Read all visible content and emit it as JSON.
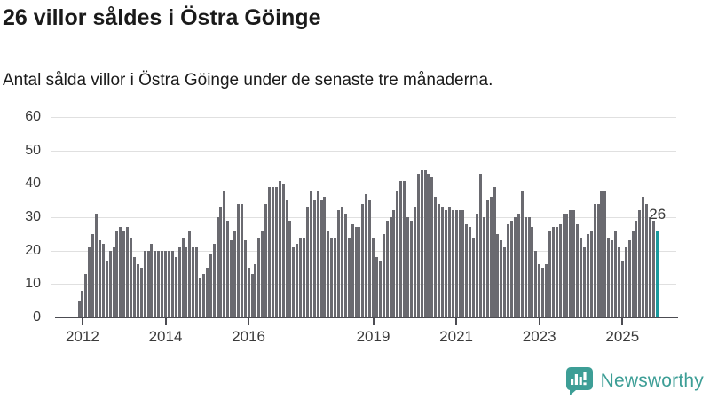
{
  "chart_data": {
    "type": "bar",
    "title": "26 villor såldes i Östra Göinge",
    "subtitle": "Antal sålda villor i Östra Göinge under de senaste tre månaderna.",
    "x_axis": {
      "start": "2011-12",
      "end": "2025-11",
      "interval": "monthly",
      "tick_labels": [
        "2012",
        "2014",
        "2016",
        "2019",
        "2021",
        "2023",
        "2025"
      ],
      "tick_month_indices": [
        1,
        25,
        49,
        85,
        109,
        133,
        157
      ]
    },
    "y_axis": {
      "min": 0,
      "max": 60,
      "ticks": [
        0,
        10,
        20,
        30,
        40,
        50,
        60
      ]
    },
    "grid": "horizontal",
    "legend": "none",
    "values": [
      5,
      8,
      13,
      21,
      25,
      31,
      23,
      22,
      17,
      20,
      21,
      26,
      27,
      26,
      27,
      24,
      18,
      16,
      15,
      20,
      20,
      22,
      20,
      20,
      20,
      20,
      20,
      20,
      18,
      21,
      24,
      21,
      26,
      21,
      21,
      12,
      13,
      15,
      19,
      22,
      30,
      33,
      38,
      29,
      23,
      26,
      34,
      34,
      23,
      15,
      13,
      16,
      24,
      26,
      34,
      39,
      39,
      39,
      41,
      40,
      35,
      29,
      21,
      22,
      24,
      24,
      33,
      38,
      35,
      38,
      35,
      36,
      26,
      24,
      24,
      32,
      33,
      31,
      24,
      28,
      27,
      27,
      34,
      37,
      35,
      24,
      18,
      17,
      25,
      29,
      30,
      32,
      38,
      41,
      41,
      30,
      29,
      33,
      43,
      44,
      44,
      43,
      42,
      36,
      34,
      33,
      32,
      33,
      32,
      32,
      32,
      32,
      28,
      27,
      24,
      31,
      43,
      30,
      35,
      36,
      39,
      25,
      23,
      21,
      28,
      29,
      30,
      31,
      38,
      30,
      30,
      27,
      20,
      16,
      15,
      16,
      26,
      27,
      27,
      28,
      31,
      31,
      32,
      32,
      28,
      24,
      21,
      25,
      26,
      34,
      34,
      38,
      38,
      24,
      23,
      26,
      21,
      17,
      21,
      23,
      26,
      29,
      32,
      36,
      34,
      30,
      29,
      26
    ],
    "highlight": {
      "index": 167,
      "label": "26",
      "color": "#1a9a9e"
    },
    "bar_color": "#6a6a70",
    "grid_color": "#e0e0e0",
    "axis_color": "#4c4c52"
  },
  "footer": {
    "brand": "Newsworthy",
    "brand_color": "#3d9e96",
    "logo_icon": "bar-chart-speech-bubble"
  }
}
